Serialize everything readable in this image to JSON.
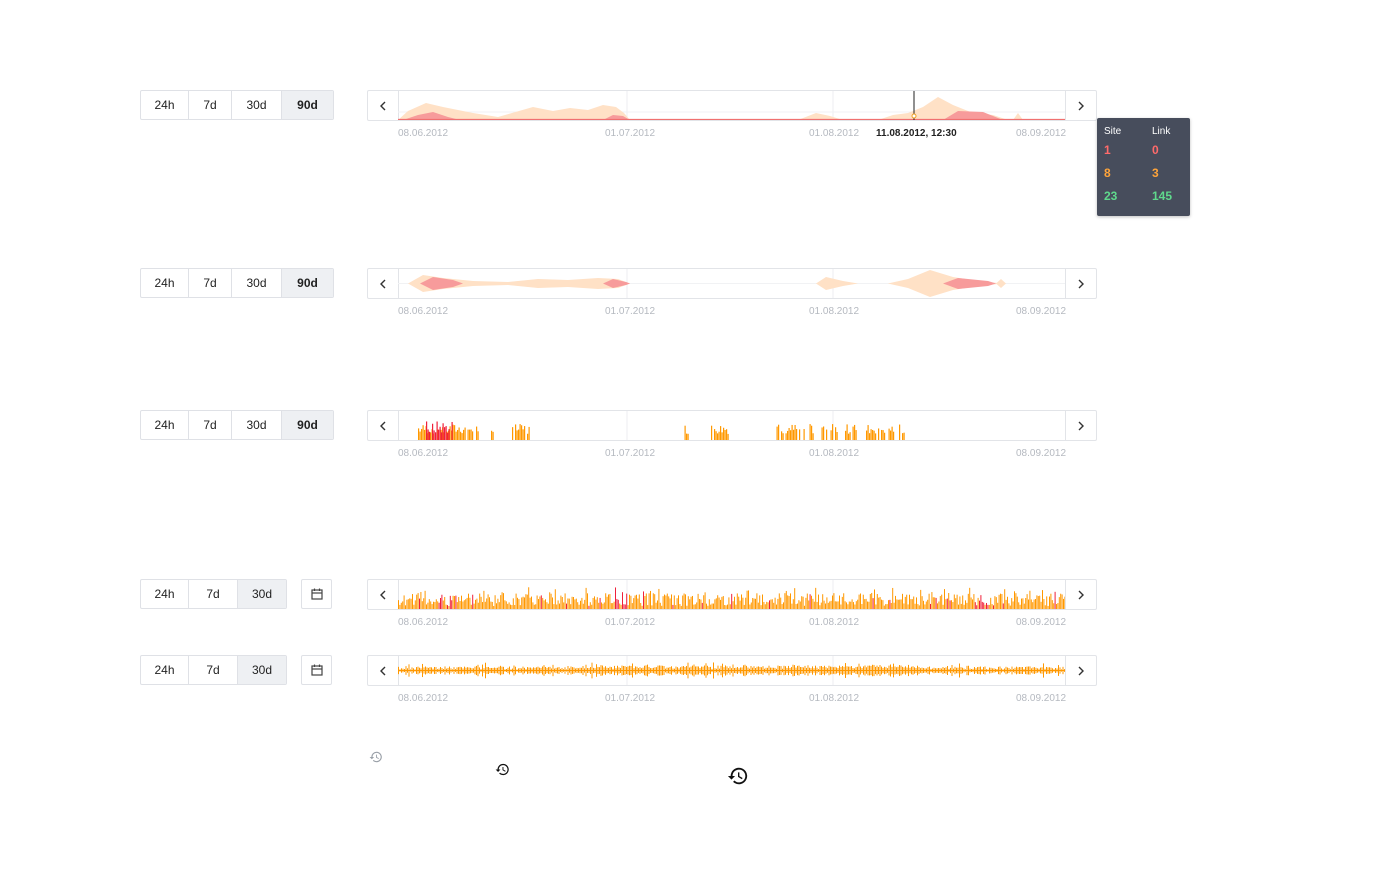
{
  "ranges_90": [
    "24h",
    "7d",
    "30d",
    "90d"
  ],
  "ranges_30": [
    "24h",
    "7d",
    "30d"
  ],
  "axis_ticks": [
    "08.06.2012",
    "01.07.2012",
    "01.08.2012",
    "08.09.2012"
  ],
  "cursor_label": "11.08.2012, 12:30",
  "tooltip": {
    "headers": [
      "Site",
      "Link"
    ],
    "rows": [
      {
        "site": "1",
        "link": "0",
        "color": "#ff6b6b"
      },
      {
        "site": "8",
        "link": "3",
        "color": "#ffa43a"
      },
      {
        "site": "23",
        "link": "145",
        "color": "#5fd98c"
      }
    ]
  },
  "colors": {
    "error": "#f0203a",
    "error_light": "#f79b9b",
    "warning": "#ff9800",
    "warning_light": "#ffe1c6",
    "ok": "#5fd98c"
  },
  "icons": {
    "nav_prev": "chevron-left-icon",
    "nav_next": "chevron-right-icon",
    "calendar": "calendar-icon",
    "history": "history-icon"
  }
}
